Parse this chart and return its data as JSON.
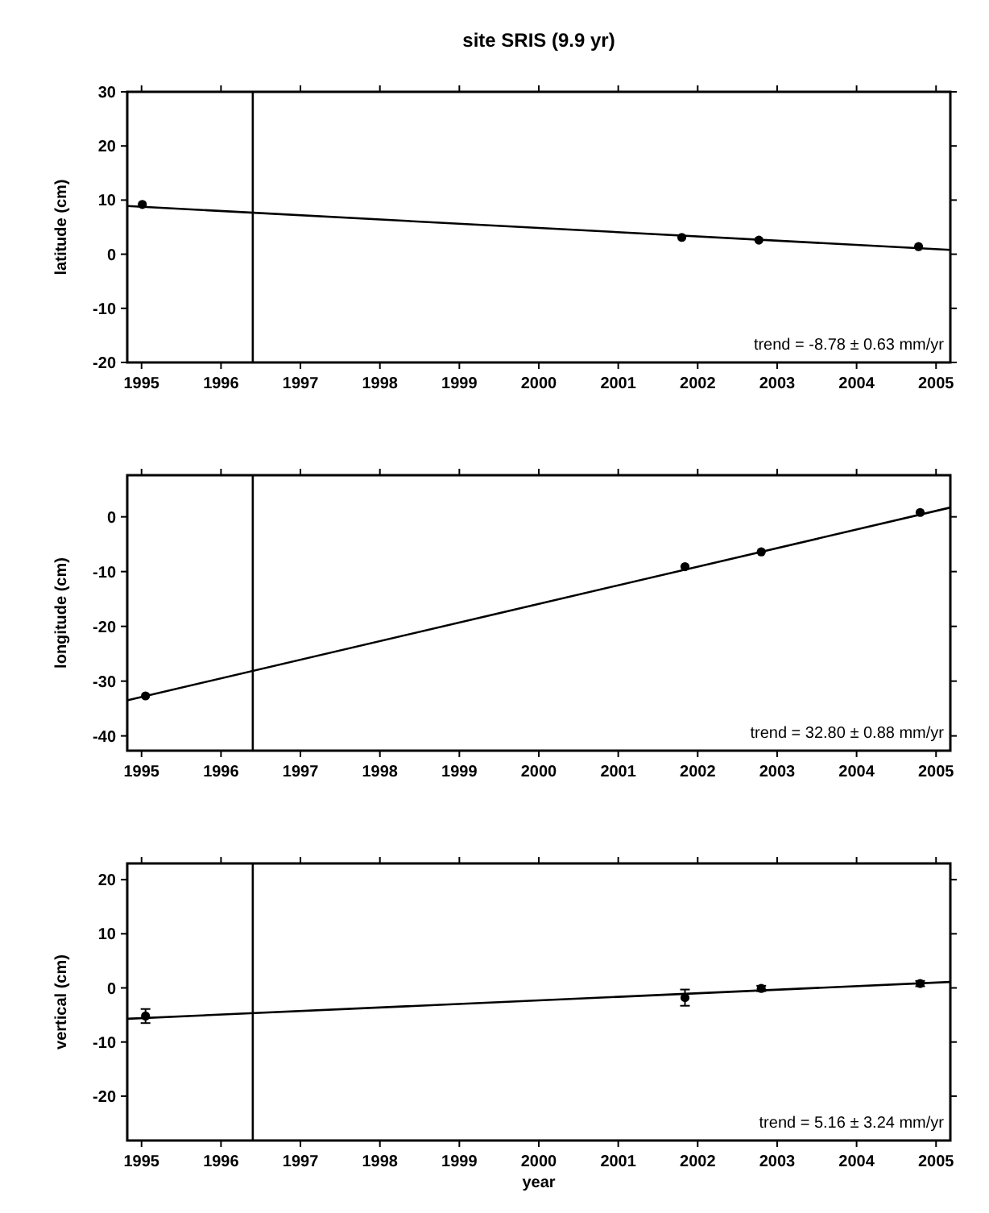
{
  "chart_data": [
    {
      "type": "scatter",
      "title": "site SRIS (9.9 yr)",
      "ylabel": "latitude (cm)",
      "xlim": [
        1994.82,
        2005.18
      ],
      "xticks": [
        1995,
        1996,
        1997,
        1998,
        1999,
        2000,
        2001,
        2002,
        2003,
        2004,
        2005
      ],
      "ylim": [
        -20,
        30
      ],
      "yticks": [
        -20,
        -10,
        0,
        10,
        20,
        30
      ],
      "series": [
        {
          "color": "#000000",
          "marker": "circle",
          "x": [
            1995.01,
            2001.8,
            2002.77,
            2004.78
          ],
          "values": [
            9.2,
            3.1,
            2.6,
            1.4
          ]
        },
        {
          "type": "line",
          "color": "#000000",
          "marker": "none",
          "line_style": "solid",
          "x": [
            1994.82,
            2005.18
          ],
          "values": [
            8.9,
            0.8
          ]
        }
      ],
      "ref_lines": [
        {
          "axis": "x",
          "value": 1996.4,
          "color": "#000000"
        }
      ],
      "annotations": [
        "trend = -8.78 ± 0.63 mm/yr"
      ]
    },
    {
      "type": "scatter",
      "ylabel": "longitude (cm)",
      "xlim": [
        1994.82,
        2005.18
      ],
      "xticks": [
        1995,
        1996,
        1997,
        1998,
        1999,
        2000,
        2001,
        2002,
        2003,
        2004,
        2005
      ],
      "ylim": [
        -42.7,
        7.6
      ],
      "yticks": [
        -40,
        -30,
        -20,
        -10,
        0
      ],
      "series": [
        {
          "color": "#000000",
          "marker": "circle",
          "x": [
            1995.05,
            2001.84,
            2002.8,
            2004.8
          ],
          "values": [
            -32.7,
            -9.1,
            -6.4,
            0.8
          ]
        },
        {
          "type": "line",
          "color": "#000000",
          "marker": "none",
          "line_style": "solid",
          "x": [
            1994.82,
            2005.18
          ],
          "values": [
            -33.5,
            1.7
          ]
        }
      ],
      "ref_lines": [
        {
          "axis": "x",
          "value": 1996.4,
          "color": "#000000"
        }
      ],
      "annotations": [
        "trend = 32.80 ± 0.88 mm/yr"
      ]
    },
    {
      "type": "scatter",
      "xlabel": "year",
      "ylabel": "vertical (cm)",
      "xlim": [
        1994.82,
        2005.18
      ],
      "xticks": [
        1995,
        1996,
        1997,
        1998,
        1999,
        2000,
        2001,
        2002,
        2003,
        2004,
        2005
      ],
      "ylim": [
        -28.2,
        23
      ],
      "yticks": [
        -20,
        -10,
        0,
        10,
        20
      ],
      "series": [
        {
          "color": "#000000",
          "marker": "circle",
          "x": [
            1995.05,
            2001.84,
            2002.8,
            2004.8
          ],
          "values": [
            -5.2,
            -1.8,
            -0.1,
            0.8
          ],
          "errors": [
            1.3,
            1.5,
            0.5,
            0.5
          ]
        },
        {
          "type": "line",
          "color": "#000000",
          "marker": "none",
          "line_style": "solid",
          "x": [
            1994.82,
            2005.18
          ],
          "values": [
            -5.7,
            1.1
          ]
        }
      ],
      "ref_lines": [
        {
          "axis": "x",
          "value": 1996.4,
          "color": "#000000"
        }
      ],
      "annotations": [
        "trend = 5.16 ± 3.24 mm/yr"
      ]
    }
  ]
}
